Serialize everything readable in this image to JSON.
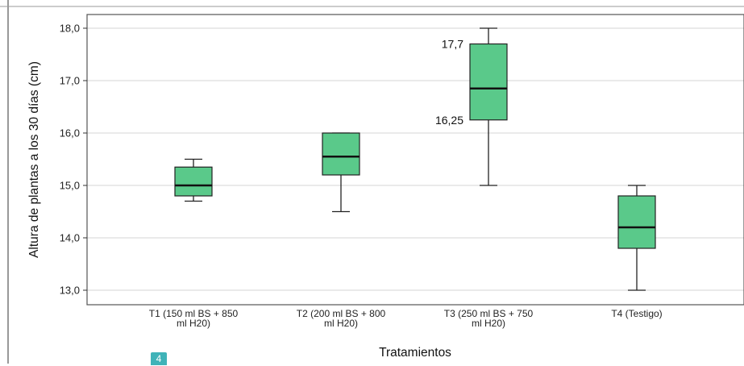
{
  "chart_data": {
    "type": "boxplot",
    "title": "",
    "xlabel": "Tratamientos",
    "ylabel": "Altura de plantas a los 30 días (cm)",
    "ylim": [
      12.75,
      18.25
    ],
    "yticks": [
      "13,0",
      "14,0",
      "15,0",
      "16,0",
      "17,0",
      "18,0"
    ],
    "ytick_values": [
      13,
      14,
      15,
      16,
      17,
      18
    ],
    "grid": true,
    "box_color": "#5ac98a",
    "categories": [
      {
        "label_lines": [
          "T1 (150 ml BS + 850",
          "ml H20)"
        ],
        "min": 14.7,
        "q1": 14.8,
        "median": 15.0,
        "q3": 15.35,
        "max": 15.5
      },
      {
        "label_lines": [
          "T2 (200 ml BS + 800",
          "ml H20)"
        ],
        "min": 14.5,
        "q1": 15.2,
        "median": 15.55,
        "q3": 16.0,
        "max": 16.0
      },
      {
        "label_lines": [
          "T3 (250 ml BS + 750",
          "ml H20)"
        ],
        "min": 15.0,
        "q1": 16.25,
        "median": 16.85,
        "q3": 17.7,
        "max": 18.0
      },
      {
        "label_lines": [
          "T4 (Testigo)"
        ],
        "min": 13.0,
        "q1": 13.8,
        "median": 14.2,
        "q3": 14.8,
        "max": 15.0
      }
    ],
    "annotations": [
      {
        "text": "17,7",
        "category": 2,
        "value": 17.7
      },
      {
        "text": "16,25",
        "category": 2,
        "value": 16.25
      }
    ]
  },
  "badge": {
    "text": "4",
    "color": "#3fb3b8"
  }
}
